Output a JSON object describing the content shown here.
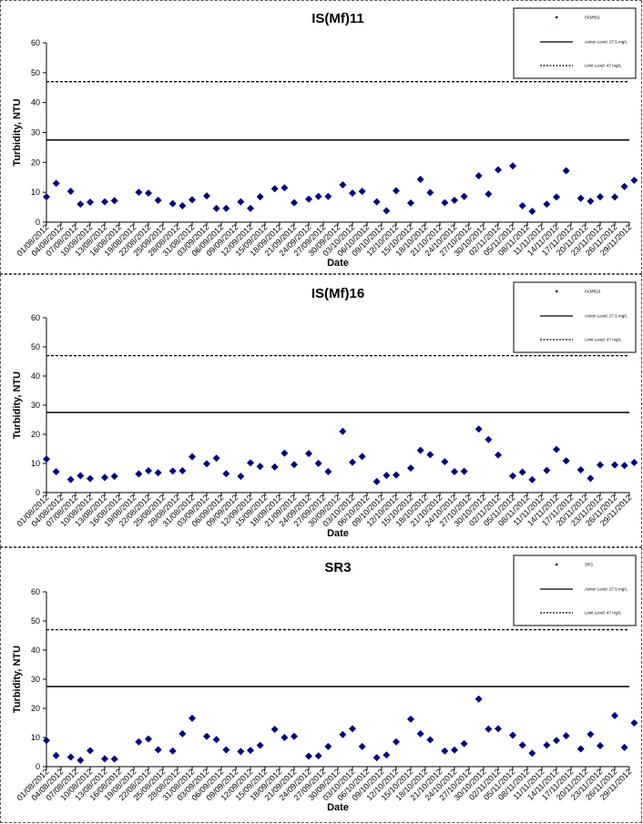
{
  "chart_data": [
    {
      "type": "scatter",
      "title": "IS(Mf)11",
      "xlabel": "Date",
      "ylabel": "Turbidity, NTU",
      "ylim": [
        0,
        60
      ],
      "yticks": [
        0,
        10,
        20,
        30,
        40,
        50,
        60
      ],
      "action_level": 27.5,
      "limit_level": 47,
      "legend": {
        "position": "top-right",
        "entries": [
          "IS(Mf)11",
          "Action Level: 27.5 mg/L",
          "Limit Level: 47 mg/L"
        ]
      },
      "xticklabels": [
        "01/08/2012",
        "04/08/2012",
        "07/08/2012",
        "10/08/2012",
        "13/08/2012",
        "16/08/2012",
        "19/08/2012",
        "22/08/2012",
        "25/08/2012",
        "28/08/2012",
        "31/08/2012",
        "03/09/2012",
        "06/09/2012",
        "09/09/2012",
        "12/09/2012",
        "15/09/2012",
        "18/09/2012",
        "21/09/2012",
        "24/09/2012",
        "27/09/2012",
        "30/09/2012",
        "03/10/2012",
        "06/10/2012",
        "09/10/2012",
        "12/10/2012",
        "15/10/2012",
        "18/10/2012",
        "21/10/2012",
        "24/10/2012",
        "27/10/2012",
        "30/10/2012",
        "02/11/2012",
        "05/11/2012",
        "08/11/2012",
        "11/11/2012",
        "14/11/2012",
        "17/11/2012",
        "20/11/2012",
        "23/11/2012",
        "26/11/2012",
        "29/11/2012"
      ],
      "x": [
        "01/08/2012",
        "03/08/2012",
        "06/08/2012",
        "08/08/2012",
        "10/08/2012",
        "13/08/2012",
        "15/08/2012",
        "20/08/2012",
        "22/08/2012",
        "24/08/2012",
        "27/08/2012",
        "29/08/2012",
        "31/08/2012",
        "03/09/2012",
        "05/09/2012",
        "07/09/2012",
        "10/09/2012",
        "12/09/2012",
        "14/09/2012",
        "17/09/2012",
        "19/09/2012",
        "21/09/2012",
        "24/09/2012",
        "26/09/2012",
        "28/09/2012",
        "01/10/2012",
        "03/10/2012",
        "05/10/2012",
        "08/10/2012",
        "10/10/2012",
        "12/10/2012",
        "15/10/2012",
        "17/10/2012",
        "19/10/2012",
        "22/10/2012",
        "24/10/2012",
        "26/10/2012",
        "29/10/2012",
        "31/10/2012",
        "02/11/2012",
        "05/11/2012",
        "07/11/2012",
        "09/11/2012",
        "12/11/2012",
        "14/11/2012",
        "16/11/2012",
        "19/11/2012",
        "21/11/2012",
        "23/11/2012",
        "26/11/2012",
        "28/11/2012",
        "30/11/2012"
      ],
      "values": [
        8.5,
        13,
        10.3,
        6,
        6.7,
        6.8,
        7.2,
        10,
        9.7,
        7.3,
        6.2,
        5.5,
        7.5,
        8.8,
        4.6,
        4.6,
        6.8,
        4.6,
        8.5,
        11.2,
        11.5,
        6.5,
        7.7,
        8.6,
        8.6,
        12.5,
        9.7,
        10.3,
        6.8,
        3.8,
        10.5,
        6.4,
        14.3,
        9.9,
        6.5,
        7.3,
        8.6,
        15.5,
        9.4,
        17.5,
        18.8,
        5.5,
        3.6,
        6,
        8.4,
        17.2,
        8,
        7,
        8.5,
        8.4,
        11.9,
        14
      ]
    },
    {
      "type": "scatter",
      "title": "IS(Mf)16",
      "xlabel": "Date",
      "ylabel": "Turbidity, NTU",
      "ylim": [
        0,
        60
      ],
      "yticks": [
        0,
        10,
        20,
        30,
        40,
        50,
        60
      ],
      "action_level": 27.5,
      "limit_level": 47,
      "legend": {
        "position": "top-right",
        "entries": [
          "IS(Mf)16",
          "Action Level: 27.5 mg/L",
          "Limit Level: 47 mg/L"
        ]
      },
      "xticklabels": [
        "01/08/2012",
        "04/08/2012",
        "07/08/2012",
        "10/08/2012",
        "13/08/2012",
        "16/08/2012",
        "19/08/2012",
        "22/08/2012",
        "25/08/2012",
        "28/08/2012",
        "31/08/2012",
        "03/09/2012",
        "06/09/2012",
        "09/09/2012",
        "12/09/2012",
        "15/09/2012",
        "18/09/2012",
        "21/09/2012",
        "24/09/2012",
        "27/09/2012",
        "30/09/2012",
        "03/10/2012",
        "06/10/2012",
        "09/10/2012",
        "12/10/2012",
        "15/10/2012",
        "18/10/2012",
        "21/10/2012",
        "24/10/2012",
        "27/10/2012",
        "30/10/2012",
        "02/11/2012",
        "05/11/2012",
        "08/11/2012",
        "11/11/2012",
        "14/11/2012",
        "17/11/2012",
        "20/11/2012",
        "23/11/2012",
        "26/11/2012",
        "29/11/2012"
      ],
      "x": [
        "01/08/2012",
        "03/08/2012",
        "06/08/2012",
        "08/08/2012",
        "10/08/2012",
        "13/08/2012",
        "15/08/2012",
        "20/08/2012",
        "22/08/2012",
        "24/08/2012",
        "27/08/2012",
        "29/08/2012",
        "31/08/2012",
        "03/09/2012",
        "05/09/2012",
        "07/09/2012",
        "10/09/2012",
        "12/09/2012",
        "14/09/2012",
        "17/09/2012",
        "19/09/2012",
        "21/09/2012",
        "24/09/2012",
        "26/09/2012",
        "28/09/2012",
        "01/10/2012",
        "03/10/2012",
        "05/10/2012",
        "08/10/2012",
        "10/10/2012",
        "12/10/2012",
        "15/10/2012",
        "17/10/2012",
        "19/10/2012",
        "22/10/2012",
        "24/10/2012",
        "26/10/2012",
        "29/10/2012",
        "31/10/2012",
        "02/11/2012",
        "05/11/2012",
        "07/11/2012",
        "09/11/2012",
        "12/11/2012",
        "14/11/2012",
        "16/11/2012",
        "19/11/2012",
        "21/11/2012",
        "23/11/2012",
        "26/11/2012",
        "28/11/2012",
        "30/11/2012"
      ],
      "values": [
        11.5,
        7.2,
        4.5,
        5.8,
        4.8,
        5.2,
        5.6,
        6.4,
        7.5,
        6.8,
        7.4,
        7.5,
        12.3,
        9.9,
        11.8,
        6.5,
        5.6,
        10.2,
        9,
        8.8,
        13.5,
        9.6,
        13.4,
        10,
        7.2,
        21,
        10.4,
        12.4,
        3.8,
        5.9,
        6,
        8.4,
        14.5,
        13,
        10.6,
        7.2,
        7.3,
        21.8,
        18.2,
        12.9,
        5.7,
        7,
        4.4,
        7.6,
        14.8,
        10.9,
        7.8,
        4.9,
        9.5,
        9.5,
        9.3,
        10.3
      ]
    },
    {
      "type": "scatter",
      "title": "SR3",
      "xlabel": "Date",
      "ylabel": "Turbidity, NTU",
      "ylim": [
        0,
        60
      ],
      "yticks": [
        0,
        10,
        20,
        30,
        40,
        50,
        60
      ],
      "action_level": 27.5,
      "limit_level": 47,
      "legend": {
        "position": "top-right",
        "entries": [
          "SR3",
          "Action Level: 27.5 mg/L",
          "Limit Level: 47 mg/L"
        ]
      },
      "xticklabels": [
        "01/08/2012",
        "04/08/2012",
        "07/08/2012",
        "10/08/2012",
        "13/08/2012",
        "16/08/2012",
        "19/08/2012",
        "22/08/2012",
        "25/08/2012",
        "28/08/2012",
        "31/08/2012",
        "03/09/2012",
        "06/09/2012",
        "09/09/2012",
        "12/09/2012",
        "15/09/2012",
        "18/09/2012",
        "21/09/2012",
        "24/09/2012",
        "27/09/2012",
        "30/09/2012",
        "03/10/2012",
        "06/10/2012",
        "09/10/2012",
        "12/10/2012",
        "15/10/2012",
        "18/10/2012",
        "21/10/2012",
        "24/10/2012",
        "27/10/2012",
        "30/10/2012",
        "02/11/2012",
        "05/11/2012",
        "08/11/2012",
        "11/11/2012",
        "14/11/2012",
        "17/11/2012",
        "20/11/2012",
        "23/11/2012",
        "26/11/2012",
        "29/11/2012"
      ],
      "x": [
        "01/08/2012",
        "03/08/2012",
        "06/08/2012",
        "08/08/2012",
        "10/08/2012",
        "13/08/2012",
        "15/08/2012",
        "20/08/2012",
        "22/08/2012",
        "24/08/2012",
        "27/08/2012",
        "29/08/2012",
        "31/08/2012",
        "03/09/2012",
        "05/09/2012",
        "07/09/2012",
        "10/09/2012",
        "12/09/2012",
        "14/09/2012",
        "17/09/2012",
        "19/09/2012",
        "21/09/2012",
        "24/09/2012",
        "26/09/2012",
        "28/09/2012",
        "01/10/2012",
        "03/10/2012",
        "05/10/2012",
        "08/10/2012",
        "10/10/2012",
        "12/10/2012",
        "15/10/2012",
        "17/10/2012",
        "19/10/2012",
        "22/10/2012",
        "24/10/2012",
        "26/10/2012",
        "29/10/2012",
        "31/10/2012",
        "02/11/2012",
        "05/11/2012",
        "07/11/2012",
        "09/11/2012",
        "12/11/2012",
        "14/11/2012",
        "16/11/2012",
        "19/11/2012",
        "21/11/2012",
        "23/11/2012",
        "26/11/2012",
        "28/11/2012",
        "30/11/2012"
      ],
      "values": [
        9,
        3.8,
        3.3,
        2.2,
        5.5,
        2.7,
        2.6,
        8.5,
        9.5,
        5.8,
        5.4,
        11.3,
        16.6,
        10.4,
        9.3,
        5.8,
        5.2,
        5.6,
        7.3,
        12.8,
        10,
        10.4,
        3.6,
        3.7,
        6.9,
        11,
        13,
        6.9,
        3.1,
        4,
        8.5,
        16.3,
        11.3,
        9.2,
        5.4,
        5.7,
        7.9,
        23.2,
        12.9,
        13,
        10.8,
        7.4,
        4.6,
        7.4,
        9,
        10.6,
        6.1,
        11.1,
        7.2,
        17.5,
        6.6,
        15
      ]
    }
  ]
}
